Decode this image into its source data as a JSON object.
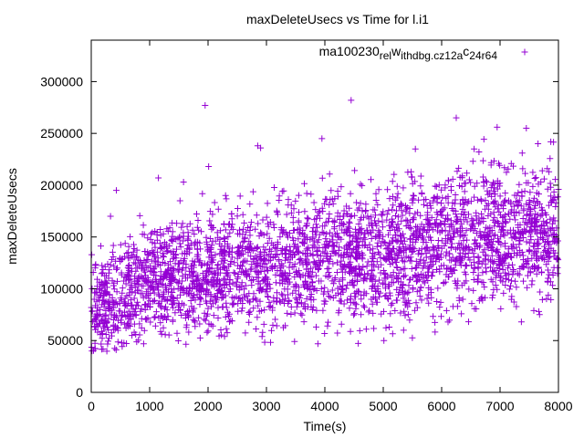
{
  "chart_data": {
    "type": "scatter",
    "title": "maxDeleteUsecs vs Time for l.i1",
    "xlabel": "Time(s)",
    "ylabel": "maxDeleteUsecs",
    "xlim": [
      0,
      8000
    ],
    "ylim": [
      0,
      340000
    ],
    "x_ticks": [
      0,
      1000,
      2000,
      3000,
      4000,
      5000,
      6000,
      7000,
      8000
    ],
    "y_ticks": [
      0,
      50000,
      100000,
      150000,
      200000,
      250000,
      300000
    ],
    "x_tick_labels": [
      "0",
      "1000",
      "2000",
      "3000",
      "4000",
      "5000",
      "6000",
      "7000",
      "8000"
    ],
    "y_tick_labels": [
      "0",
      "50000",
      "100000",
      "150000",
      "200000",
      "250000",
      "300000"
    ],
    "grid": false,
    "legend_position": "top-right",
    "series": [
      {
        "name": "ma100230_rel_withdbg.cz12a_c24r64",
        "legend_label": {
          "parts": [
            {
              "text": "ma100230",
              "sub": false
            },
            {
              "text": "rel",
              "sub": true
            },
            {
              "text": "w",
              "sub": false
            },
            {
              "text": "ithdbg.cz12a",
              "sub": true
            },
            {
              "text": "c",
              "sub": false
            },
            {
              "text": "24r64",
              "sub": true
            }
          ]
        },
        "color": "#9400d3",
        "marker": "plus",
        "trend": {
          "x": [
            0,
            500,
            1000,
            2000,
            3000,
            4000,
            5000,
            6000,
            7000,
            8000
          ],
          "y": [
            75000,
            95000,
            108000,
            115000,
            122000,
            128000,
            132000,
            143000,
            150000,
            155000
          ]
        },
        "spread": {
          "x": [
            0,
            1000,
            4000,
            8000
          ],
          "y": [
            20000,
            27000,
            30000,
            32000
          ]
        },
        "point_count": 3200,
        "outliers": {
          "x": [
            1950,
            4450,
            6250,
            6950,
            7450,
            7650,
            2850,
            2900,
            3950,
            5550,
            1580,
            2010,
            430,
            1150,
            1520,
            330
          ],
          "y": [
            277000,
            282000,
            265000,
            256000,
            255000,
            240000,
            238000,
            236000,
            245000,
            235000,
            203000,
            218000,
            195000,
            207000,
            185000,
            170000
          ]
        }
      }
    ]
  }
}
